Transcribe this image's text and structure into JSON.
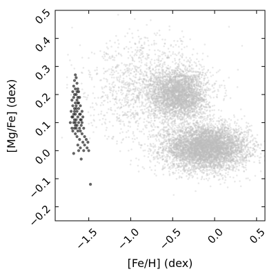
{
  "chart_data": {
    "type": "scatter",
    "xlabel": "[Fe/H] (dex)",
    "ylabel": "[Mg/Fe] (dex)",
    "xlim": [
      -1.9,
      0.6
    ],
    "ylim": [
      -0.25,
      0.5
    ],
    "xticks": [
      -1.5,
      -1.0,
      -0.5,
      0.0,
      0.5
    ],
    "xtick_labels": [
      "−1.5",
      "−1.0",
      "−0.5",
      "0.0",
      "0.5"
    ],
    "yticks": [
      -0.2,
      -0.1,
      0.0,
      0.1,
      0.2,
      0.3,
      0.4,
      0.5
    ],
    "ytick_labels": [
      "−0.2",
      "−0.1",
      "0.0",
      "0.1",
      "0.2",
      "0.3",
      "0.4",
      "0.5"
    ],
    "grid": false,
    "colors": {
      "background_points": "#bdbdbd",
      "highlight_points": "#222222",
      "axes": "#000000"
    },
    "series": [
      {
        "marker": "gray-density",
        "clusters": [
          {
            "x_center": -0.1,
            "y_center": 0.01,
            "x_spread": 0.25,
            "y_spread": 0.04,
            "weight": 0.55
          },
          {
            "x_center": -0.42,
            "y_center": 0.2,
            "x_spread": 0.17,
            "y_spread": 0.045,
            "weight": 0.3
          },
          {
            "x_center": -0.8,
            "y_center": 0.22,
            "x_spread": 0.35,
            "y_spread": 0.09,
            "weight": 0.15
          }
        ]
      },
      {
        "marker": "black-points",
        "points": [
          [
            -1.66,
            0.27
          ],
          [
            -1.65,
            0.26
          ],
          [
            -1.67,
            0.25
          ],
          [
            -1.64,
            0.24
          ],
          [
            -1.68,
            0.23
          ],
          [
            -1.63,
            0.22
          ],
          [
            -1.66,
            0.22
          ],
          [
            -1.69,
            0.21
          ],
          [
            -1.62,
            0.21
          ],
          [
            -1.65,
            0.2
          ],
          [
            -1.67,
            0.2
          ],
          [
            -1.61,
            0.19
          ],
          [
            -1.68,
            0.19
          ],
          [
            -1.64,
            0.18
          ],
          [
            -1.7,
            0.18
          ],
          [
            -1.63,
            0.17
          ],
          [
            -1.66,
            0.17
          ],
          [
            -1.69,
            0.16
          ],
          [
            -1.6,
            0.16
          ],
          [
            -1.65,
            0.15
          ],
          [
            -1.67,
            0.15
          ],
          [
            -1.62,
            0.15
          ],
          [
            -1.71,
            0.14
          ],
          [
            -1.64,
            0.14
          ],
          [
            -1.58,
            0.14
          ],
          [
            -1.68,
            0.13
          ],
          [
            -1.66,
            0.13
          ],
          [
            -1.61,
            0.13
          ],
          [
            -1.7,
            0.12
          ],
          [
            -1.63,
            0.12
          ],
          [
            -1.57,
            0.12
          ],
          [
            -1.67,
            0.11
          ],
          [
            -1.65,
            0.11
          ],
          [
            -1.6,
            0.11
          ],
          [
            -1.72,
            0.1
          ],
          [
            -1.68,
            0.1
          ],
          [
            -1.62,
            0.1
          ],
          [
            -1.58,
            0.1
          ],
          [
            -1.66,
            0.09
          ],
          [
            -1.64,
            0.09
          ],
          [
            -1.59,
            0.09
          ],
          [
            -1.7,
            0.08
          ],
          [
            -1.67,
            0.08
          ],
          [
            -1.61,
            0.08
          ],
          [
            -1.56,
            0.08
          ],
          [
            -1.69,
            0.07
          ],
          [
            -1.63,
            0.07
          ],
          [
            -1.6,
            0.07
          ],
          [
            -1.66,
            0.06
          ],
          [
            -1.58,
            0.06
          ],
          [
            -1.55,
            0.05
          ],
          [
            -1.64,
            0.05
          ],
          [
            -1.61,
            0.04
          ],
          [
            -1.53,
            0.04
          ],
          [
            -1.57,
            0.03
          ],
          [
            -1.51,
            0.03
          ],
          [
            -1.63,
            0.02
          ],
          [
            -1.55,
            0.02
          ],
          [
            -1.6,
            0.01
          ],
          [
            -1.52,
            0.01
          ],
          [
            -1.62,
            0.0
          ],
          [
            -1.56,
            0.0
          ],
          [
            -1.5,
            0.0
          ],
          [
            -1.68,
            -0.01
          ],
          [
            -1.59,
            -0.03
          ],
          [
            -1.48,
            -0.12
          ],
          [
            -1.65,
            0.16
          ],
          [
            -1.63,
            0.19
          ],
          [
            -1.69,
            0.12
          ],
          [
            -1.6,
            0.13
          ],
          [
            -1.66,
            0.1
          ],
          [
            -1.62,
            0.17
          ],
          [
            -1.64,
            0.21
          ],
          [
            -1.67,
            0.14
          ],
          [
            -1.59,
            0.11
          ],
          [
            -1.65,
            0.08
          ]
        ]
      }
    ]
  }
}
